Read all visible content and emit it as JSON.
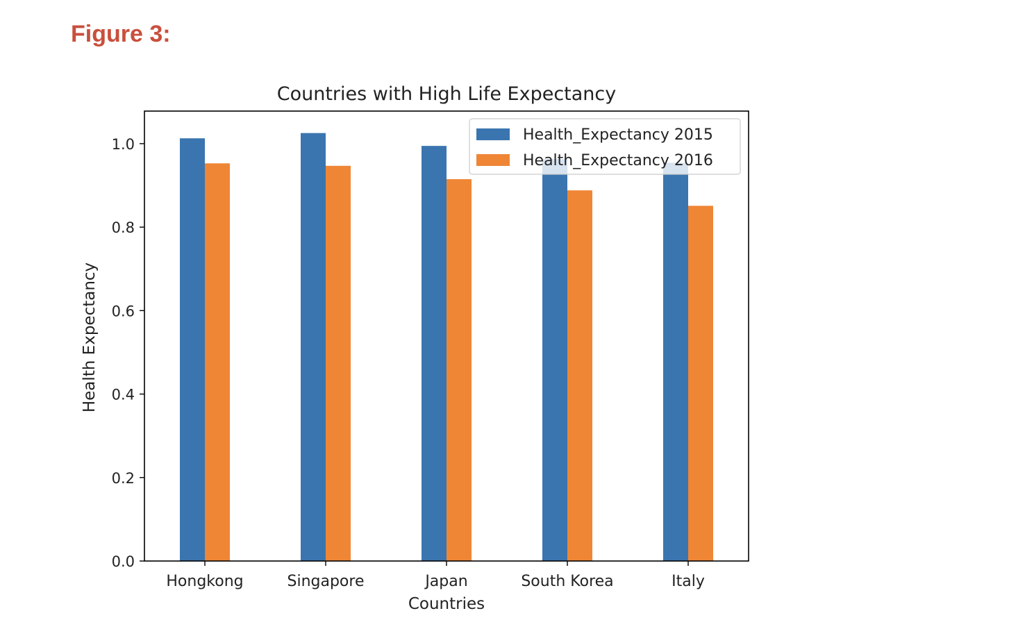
{
  "figure_label": "Figure 3:",
  "colors": {
    "heading": "#c94f3d",
    "series_2015": "#3a75b0",
    "series_2016": "#ef8636"
  },
  "chart_data": {
    "type": "bar",
    "title": "Countries with High Life Expectancy",
    "xlabel": "Countries",
    "ylabel": "Health Expectancy",
    "ylim": [
      0,
      1.078
    ],
    "yticks": [
      0.0,
      0.2,
      0.4,
      0.6,
      0.8,
      1.0
    ],
    "ytick_labels": [
      "0.0",
      "0.2",
      "0.4",
      "0.6",
      "0.8",
      "1.0"
    ],
    "categories": [
      "Hongkong",
      "Singapore",
      "Japan",
      "South Korea",
      "Italy"
    ],
    "series": [
      {
        "name": "Health_Expectancy 2015",
        "color": "#3a75b0",
        "values": [
          1.0128,
          1.0254,
          0.9946,
          0.963,
          0.9542
        ]
      },
      {
        "name": "Health_Expectancy 2016",
        "color": "#ef8636",
        "values": [
          0.9528,
          0.9469,
          0.9149,
          0.8881,
          0.8511
        ]
      }
    ],
    "legend_position": "top-right",
    "grid": false
  }
}
